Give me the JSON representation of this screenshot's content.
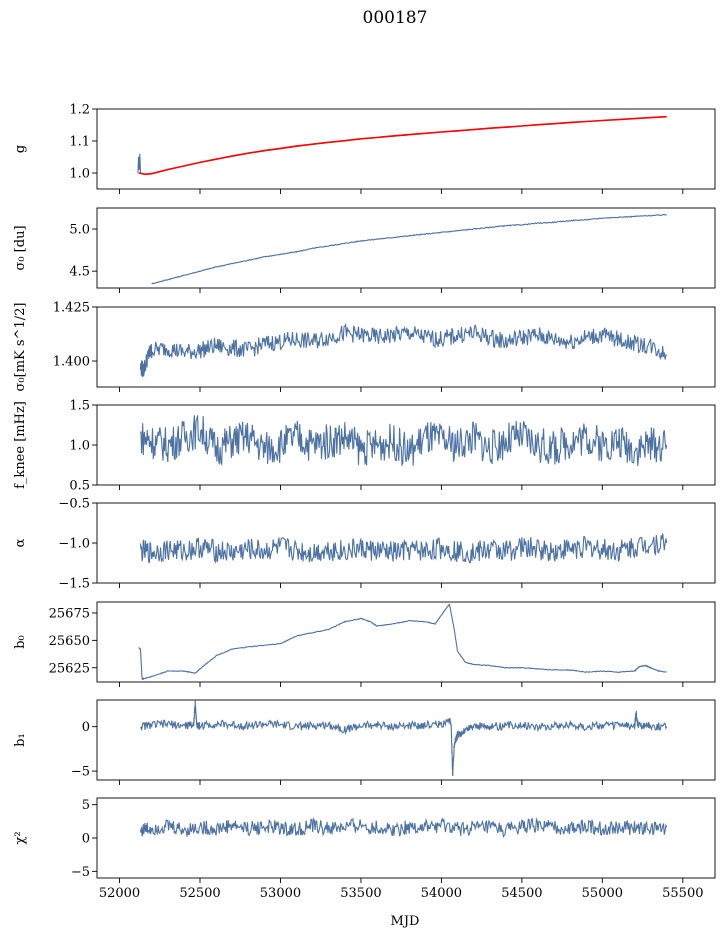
{
  "figure": {
    "title": "000187",
    "xlabel": "MJD",
    "xlim": [
      51860,
      55700
    ],
    "xticks": [
      52000,
      52500,
      53000,
      53500,
      54000,
      54500,
      55000,
      55500
    ],
    "line_color": "#4c72a4",
    "fit_color": "#ff0000"
  },
  "chart_data": [
    {
      "type": "line",
      "ylabel": "g",
      "ylim": [
        0.95,
        1.2
      ],
      "yticks": [
        1.0,
        1.1,
        1.2
      ],
      "ytick_labels": [
        "1.0",
        "1.1",
        "1.2"
      ],
      "series": [
        {
          "style": "data",
          "x": [
            52115,
            52118,
            52122,
            52126,
            52130,
            52140,
            52160,
            52200,
            52300,
            52400,
            52500,
            52600,
            52700,
            52800,
            52900,
            53000,
            53100,
            53200,
            53300,
            53400,
            53500,
            53600,
            53700,
            53800,
            53900,
            54000,
            54100,
            54200,
            54300,
            54400,
            54500,
            54600,
            54700,
            54800,
            54900,
            55000,
            55100,
            55200,
            55300,
            55400
          ],
          "y": [
            1.0,
            1.05,
            1.01,
            1.06,
            1.0,
            0.998,
            0.995,
            0.997,
            1.01,
            1.022,
            1.033,
            1.043,
            1.052,
            1.062,
            1.069,
            1.076,
            1.083,
            1.09,
            1.096,
            1.101,
            1.107,
            1.111,
            1.115,
            1.119,
            1.124,
            1.128,
            1.131,
            1.135,
            1.139,
            1.144,
            1.147,
            1.15,
            1.154,
            1.157,
            1.161,
            1.164,
            1.167,
            1.17,
            1.173,
            1.176
          ]
        },
        {
          "style": "fit",
          "x": [
            52120,
            52160,
            52200,
            52300,
            52400,
            52500,
            52600,
            52700,
            52800,
            52900,
            53000,
            53100,
            53200,
            53300,
            53400,
            53500,
            53600,
            53700,
            53800,
            53900,
            54000,
            54100,
            54200,
            54300,
            54400,
            54500,
            54600,
            54700,
            54800,
            54900,
            55000,
            55100,
            55200,
            55300,
            55400
          ],
          "y": [
            1.0,
            0.996,
            0.998,
            1.011,
            1.022,
            1.033,
            1.043,
            1.053,
            1.062,
            1.07,
            1.077,
            1.084,
            1.09,
            1.096,
            1.101,
            1.107,
            1.111,
            1.116,
            1.12,
            1.124,
            1.128,
            1.132,
            1.136,
            1.14,
            1.143,
            1.147,
            1.151,
            1.154,
            1.158,
            1.161,
            1.164,
            1.167,
            1.17,
            1.173,
            1.176
          ]
        }
      ]
    },
    {
      "type": "line",
      "ylabel": "σ₀ [du]",
      "ylim": [
        4.3,
        5.25
      ],
      "yticks": [
        4.5,
        5.0
      ],
      "ytick_labels": [
        "4.5",
        "5.0"
      ],
      "series": [
        {
          "x": [
            52200,
            52300,
            52400,
            52500,
            52600,
            52700,
            52800,
            52900,
            53000,
            53100,
            53200,
            53300,
            53400,
            53500,
            53600,
            53700,
            53800,
            53900,
            54000,
            54100,
            54200,
            54300,
            54400,
            54500,
            54600,
            54700,
            54800,
            54900,
            55000,
            55100,
            55200,
            55300,
            55400
          ],
          "y": [
            4.35,
            4.4,
            4.45,
            4.5,
            4.55,
            4.59,
            4.63,
            4.67,
            4.7,
            4.73,
            4.77,
            4.8,
            4.83,
            4.86,
            4.88,
            4.9,
            4.92,
            4.94,
            4.96,
            4.98,
            5.0,
            5.02,
            5.04,
            5.05,
            5.07,
            5.08,
            5.1,
            5.11,
            5.13,
            5.14,
            5.15,
            5.16,
            5.17
          ]
        }
      ]
    },
    {
      "type": "line",
      "ylabel": "σ₀[mK s^1/2]",
      "ylim": [
        1.388,
        1.425
      ],
      "yticks": [
        1.4,
        1.425
      ],
      "ytick_labels": [
        "1.400",
        "1.425"
      ],
      "series": [
        {
          "x": [
            52130,
            52150,
            52180,
            52200,
            52300,
            52400,
            52500,
            52600,
            52700,
            52800,
            52900,
            53000,
            53100,
            53200,
            53300,
            53400,
            53500,
            53600,
            53700,
            53800,
            53900,
            54000,
            54100,
            54200,
            54300,
            54400,
            54500,
            54600,
            54700,
            54800,
            54900,
            55000,
            55100,
            55200,
            55300,
            55400
          ],
          "y": [
            1.397,
            1.396,
            1.403,
            1.405,
            1.406,
            1.404,
            1.405,
            1.407,
            1.406,
            1.405,
            1.408,
            1.409,
            1.41,
            1.409,
            1.411,
            1.413,
            1.412,
            1.411,
            1.412,
            1.413,
            1.411,
            1.41,
            1.412,
            1.413,
            1.411,
            1.409,
            1.411,
            1.412,
            1.41,
            1.409,
            1.411,
            1.412,
            1.41,
            1.408,
            1.407,
            1.403
          ]
        }
      ]
    },
    {
      "type": "line",
      "ylabel": "f_knee [mHz]",
      "ylim": [
        0.5,
        1.5
      ],
      "yticks": [
        0.5,
        1.0,
        1.5
      ],
      "ytick_labels": [
        "0.5",
        "1.0",
        "1.5"
      ],
      "series": [
        {
          "x": [
            52130,
            52200,
            52300,
            52400,
            52500,
            52600,
            52700,
            52800,
            52900,
            53000,
            53100,
            53200,
            53300,
            53400,
            53500,
            53600,
            53700,
            53800,
            53900,
            54000,
            54100,
            54200,
            54300,
            54400,
            54500,
            54600,
            54700,
            54800,
            54900,
            55000,
            55100,
            55200,
            55300,
            55400
          ],
          "y": [
            1.1,
            1.05,
            1.0,
            1.1,
            1.2,
            0.95,
            1.05,
            1.1,
            0.95,
            1.0,
            1.1,
            1.0,
            1.05,
            1.1,
            0.95,
            1.0,
            1.05,
            0.9,
            1.1,
            1.05,
            1.0,
            1.1,
            0.95,
            1.05,
            1.1,
            1.0,
            0.95,
            1.05,
            1.1,
            1.0,
            1.05,
            0.95,
            1.0,
            1.0
          ]
        }
      ]
    },
    {
      "type": "line",
      "ylabel": "α",
      "ylim": [
        -1.5,
        -0.5
      ],
      "yticks": [
        -1.5,
        -1.0,
        -0.5
      ],
      "ytick_labels": [
        "−1.5",
        "−1.0",
        "−0.5"
      ],
      "series": [
        {
          "x": [
            52130,
            52200,
            52300,
            52400,
            52500,
            52600,
            52700,
            52800,
            52900,
            53000,
            53100,
            53200,
            53300,
            53400,
            53500,
            53600,
            53700,
            53800,
            53900,
            54000,
            54100,
            54200,
            54300,
            54400,
            54500,
            54600,
            54700,
            54800,
            54900,
            55000,
            55100,
            55200,
            55300,
            55400
          ],
          "y": [
            -1.1,
            -1.12,
            -1.08,
            -1.1,
            -1.05,
            -1.1,
            -1.12,
            -1.08,
            -1.1,
            -1.05,
            -1.1,
            -1.12,
            -1.08,
            -1.1,
            -1.07,
            -1.1,
            -1.12,
            -1.09,
            -1.1,
            -1.06,
            -1.1,
            -1.12,
            -1.08,
            -1.1,
            -1.05,
            -1.08,
            -1.1,
            -1.07,
            -1.05,
            -1.08,
            -1.1,
            -1.05,
            -1.0,
            -1.0
          ]
        }
      ]
    },
    {
      "type": "line",
      "ylabel": "b₀",
      "ylim": [
        25612,
        25685
      ],
      "yticks": [
        25625,
        25650,
        25675
      ],
      "ytick_labels": [
        "25625",
        "25650",
        "25675"
      ],
      "series": [
        {
          "x": [
            52120,
            52130,
            52140,
            52150,
            52200,
            52300,
            52400,
            52470,
            52500,
            52600,
            52700,
            52800,
            53000,
            53100,
            53200,
            53300,
            53400,
            53500,
            53560,
            53600,
            53700,
            53800,
            53900,
            53960,
            54000,
            54050,
            54080,
            54100,
            54150,
            54200,
            54300,
            54400,
            54500,
            54600,
            54700,
            54800,
            54900,
            55000,
            55100,
            55200,
            55230,
            55270,
            55300,
            55350,
            55400
          ],
          "y": [
            25643,
            25642,
            25615,
            25615,
            25617,
            25622,
            25622,
            25620,
            25624,
            25636,
            25642,
            25644,
            25647,
            25654,
            25657,
            25660,
            25667,
            25670,
            25667,
            25663,
            25665,
            25668,
            25667,
            25665,
            25673,
            25683,
            25660,
            25640,
            25630,
            25628,
            25627,
            25625,
            25625,
            25624,
            25623,
            25623,
            25621,
            25622,
            25621,
            25622,
            25626,
            25627,
            25625,
            25622,
            25621
          ]
        }
      ]
    },
    {
      "type": "line",
      "ylabel": "b₁",
      "ylim": [
        -6,
        3
      ],
      "yticks": [
        -5,
        0
      ],
      "ytick_labels": [
        "−5",
        "0"
      ],
      "series": [
        {
          "x": [
            52130,
            52200,
            52300,
            52400,
            52460,
            52470,
            52480,
            52500,
            52600,
            52700,
            52800,
            52900,
            53000,
            53100,
            53200,
            53300,
            53400,
            53500,
            53600,
            53700,
            53800,
            53900,
            54000,
            54060,
            54070,
            54080,
            54100,
            54150,
            54200,
            54300,
            54400,
            54500,
            54600,
            54700,
            54800,
            54900,
            55000,
            55100,
            55200,
            55210,
            55220,
            55300,
            55400
          ],
          "y": [
            0.0,
            0.2,
            0.3,
            0.1,
            0.2,
            2.5,
            0.2,
            0.1,
            0.3,
            0.2,
            0.1,
            0.3,
            0.2,
            0.0,
            0.1,
            0.2,
            -0.3,
            0.1,
            0.2,
            0.0,
            0.1,
            0.2,
            0.3,
            0.5,
            -5.3,
            -2.0,
            -1.0,
            -0.4,
            0.1,
            0.0,
            0.1,
            0.2,
            0.0,
            0.1,
            0.2,
            0.0,
            0.1,
            0.2,
            0.0,
            1.5,
            0.2,
            0.1,
            0.0
          ]
        }
      ]
    },
    {
      "type": "line",
      "ylabel": "χ²",
      "ylim": [
        -6,
        6
      ],
      "yticks": [
        -5,
        0,
        5
      ],
      "ytick_labels": [
        "−5",
        "0",
        "5"
      ],
      "series": [
        {
          "x": [
            52130,
            52200,
            52300,
            52400,
            52500,
            52600,
            52700,
            52800,
            52900,
            53000,
            53100,
            53200,
            53300,
            53400,
            53500,
            53600,
            53700,
            53800,
            53900,
            54000,
            54100,
            54200,
            54300,
            54400,
            54500,
            54600,
            54700,
            54800,
            54900,
            55000,
            55100,
            55200,
            55300,
            55400
          ],
          "y": [
            1.2,
            1.5,
            1.8,
            1.2,
            1.6,
            1.3,
            1.9,
            1.4,
            1.7,
            1.5,
            1.2,
            1.8,
            1.4,
            1.6,
            1.9,
            1.5,
            1.3,
            1.7,
            1.6,
            1.8,
            1.4,
            1.5,
            1.6,
            1.2,
            1.7,
            1.9,
            1.5,
            1.4,
            1.8,
            1.3,
            1.6,
            1.5,
            1.4,
            1.6
          ]
        }
      ]
    }
  ]
}
